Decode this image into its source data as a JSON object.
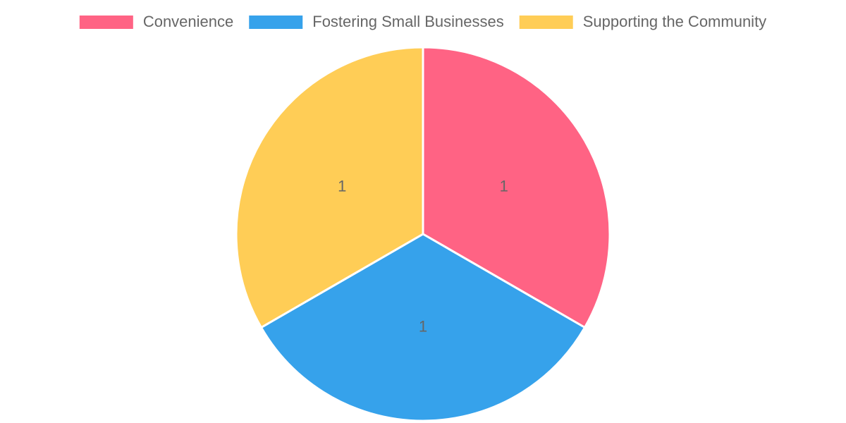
{
  "chart_data": {
    "type": "pie",
    "categories": [
      "Convenience",
      "Fostering Small Businesses",
      "Supporting the Community"
    ],
    "values": [
      1,
      1,
      1
    ],
    "colors": [
      "#ff6384",
      "#36a2eb",
      "#ffcd56"
    ],
    "legend": "top"
  }
}
